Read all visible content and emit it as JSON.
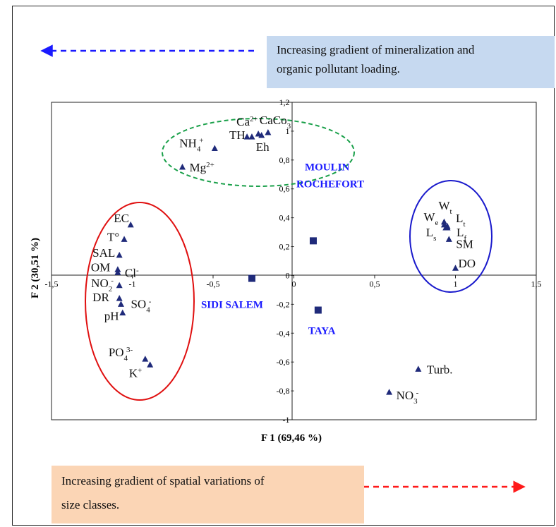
{
  "chart_data": {
    "type": "scatter",
    "title": "",
    "xlabel": "F 1 (69,46 %)",
    "ylabel": "F 2 (30,51 %)",
    "xlim": [
      -1.5,
      1.5
    ],
    "ylim": [
      -1,
      1.2
    ],
    "x_ticks": [
      -1.5,
      -1,
      -0.5,
      0,
      0.5,
      1,
      1.5
    ],
    "x_tick_labels": [
      "-1,5",
      "-1",
      "-0,5",
      "0",
      "0,5",
      "1",
      "1,5"
    ],
    "y_ticks": [
      -1,
      -0.8,
      -0.6,
      -0.4,
      -0.2,
      0,
      0.2,
      0.4,
      0.6,
      0.8,
      1,
      1.2
    ],
    "y_tick_labels": [
      "-1",
      "-0,8",
      "-0,6",
      "-0,4",
      "-0,2",
      "0",
      "0,2",
      "0,4",
      "0,6",
      "0,8",
      "1",
      "1,2"
    ],
    "grid": false,
    "colors": {
      "points": "#1f2a7a",
      "site_labels": "#1a1aff",
      "green_ellipse": "#1aa04a",
      "red_ellipse": "#e01010",
      "blue_ellipse": "#1a1acc",
      "arrow_left": "#1a1aff",
      "arrow_right": "#ff1a1a"
    },
    "variables": [
      {
        "label": "Ca",
        "sup": "2+",
        "x": -0.22,
        "y": 0.98
      },
      {
        "label": "CaCo",
        "sub": "3",
        "x": -0.16,
        "y": 0.99
      },
      {
        "label": "TH",
        "x": -0.26,
        "y": 0.96
      },
      {
        "label": "",
        "x": -0.29,
        "y": 0.96
      },
      {
        "label": "Eh",
        "x": -0.2,
        "y": 0.97
      },
      {
        "label": "NH",
        "sub": "4",
        "sup": "+",
        "x": -0.49,
        "y": 0.88
      },
      {
        "label": "Mg",
        "sup": "2+",
        "x": -0.69,
        "y": 0.75
      },
      {
        "label": "EC",
        "x": -1.01,
        "y": 0.35
      },
      {
        "label": "T°",
        "x": -1.05,
        "y": 0.25
      },
      {
        "label": "SAL",
        "x": -1.08,
        "y": 0.14
      },
      {
        "label": "OM",
        "x": -1.09,
        "y": 0.04
      },
      {
        "label": "Cl",
        "sup": "-",
        "x": -1.09,
        "y": 0.02
      },
      {
        "label": "NO",
        "sub": "2",
        "sup": "-",
        "x": -1.08,
        "y": -0.07
      },
      {
        "label": "DR",
        "x": -1.08,
        "y": -0.16
      },
      {
        "label": "SO",
        "sub": "4",
        "sup": "-",
        "x": -1.07,
        "y": -0.2
      },
      {
        "label": "pH",
        "x": -1.06,
        "y": -0.26
      },
      {
        "label": "PO",
        "sub": "4",
        "sup": "3-",
        "x": -0.92,
        "y": -0.58
      },
      {
        "label": "K",
        "sup": "+",
        "x": -0.89,
        "y": -0.62
      },
      {
        "label": "W",
        "sub": "t",
        "x": 0.93,
        "y": 0.37
      },
      {
        "label": "W",
        "sub": "e",
        "x": 0.93,
        "y": 0.35
      },
      {
        "label": "L",
        "sub": "t",
        "x": 0.95,
        "y": 0.34
      },
      {
        "label": "L",
        "sub": "s",
        "x": 0.94,
        "y": 0.33
      },
      {
        "label": "L",
        "sub": "f",
        "x": 0.95,
        "y": 0.33
      },
      {
        "label": "SM",
        "x": 0.96,
        "y": 0.25
      },
      {
        "label": "DO",
        "x": 1.0,
        "y": 0.05
      },
      {
        "label": "Turb.",
        "x": 0.77,
        "y": -0.65
      },
      {
        "label": "NO",
        "sub": "3",
        "sup": "-",
        "x": 0.59,
        "y": -0.81
      }
    ],
    "sites": [
      {
        "label": "MOULIN ROCHEFORT",
        "lines": [
          "MOULIN",
          "ROCHEFORT"
        ],
        "x": 0.12,
        "y": 0.24
      },
      {
        "label": "SIDI SALEM",
        "lines": [
          "SIDI SALEM"
        ],
        "x": -0.26,
        "y": -0.02
      },
      {
        "label": "TAYA",
        "lines": [
          "TAYA"
        ],
        "x": 0.15,
        "y": -0.24
      }
    ]
  },
  "annotations": {
    "top_box": [
      "Increasing gradient of mineralization and",
      "organic pollutant loading."
    ],
    "bottom_box": [
      "Increasing gradient of spatial variations of",
      "size classes."
    ]
  }
}
